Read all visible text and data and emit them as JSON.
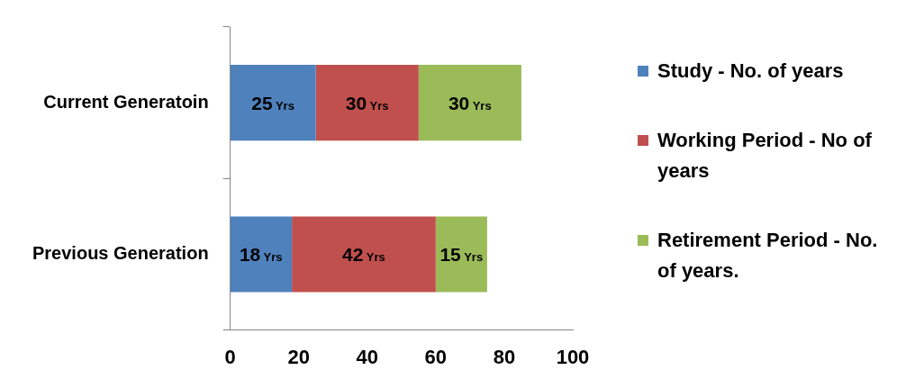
{
  "chart_data": {
    "type": "bar",
    "orientation": "horizontal",
    "stacked": true,
    "categories": [
      "Current Generatoin",
      "Previous Generation"
    ],
    "series": [
      {
        "name": "Study - No. of years",
        "color": "#4f81bd",
        "values": [
          25,
          18
        ],
        "value_labels": [
          "25 Yrs",
          "18 Yrs"
        ]
      },
      {
        "name": "Working Period - No of years",
        "color": "#c0504d",
        "values": [
          30,
          42
        ],
        "value_labels": [
          "30 Yrs",
          "42 Yrs"
        ]
      },
      {
        "name": "Retirement Period - No. of years.",
        "color": "#9bbb59",
        "values": [
          30,
          15
        ],
        "value_labels": [
          "30 Yrs",
          "15 Yrs"
        ]
      }
    ],
    "xlim": [
      0,
      100
    ],
    "xticks": [
      0,
      20,
      40,
      60,
      80,
      100
    ],
    "grid": false,
    "legend": "right"
  }
}
